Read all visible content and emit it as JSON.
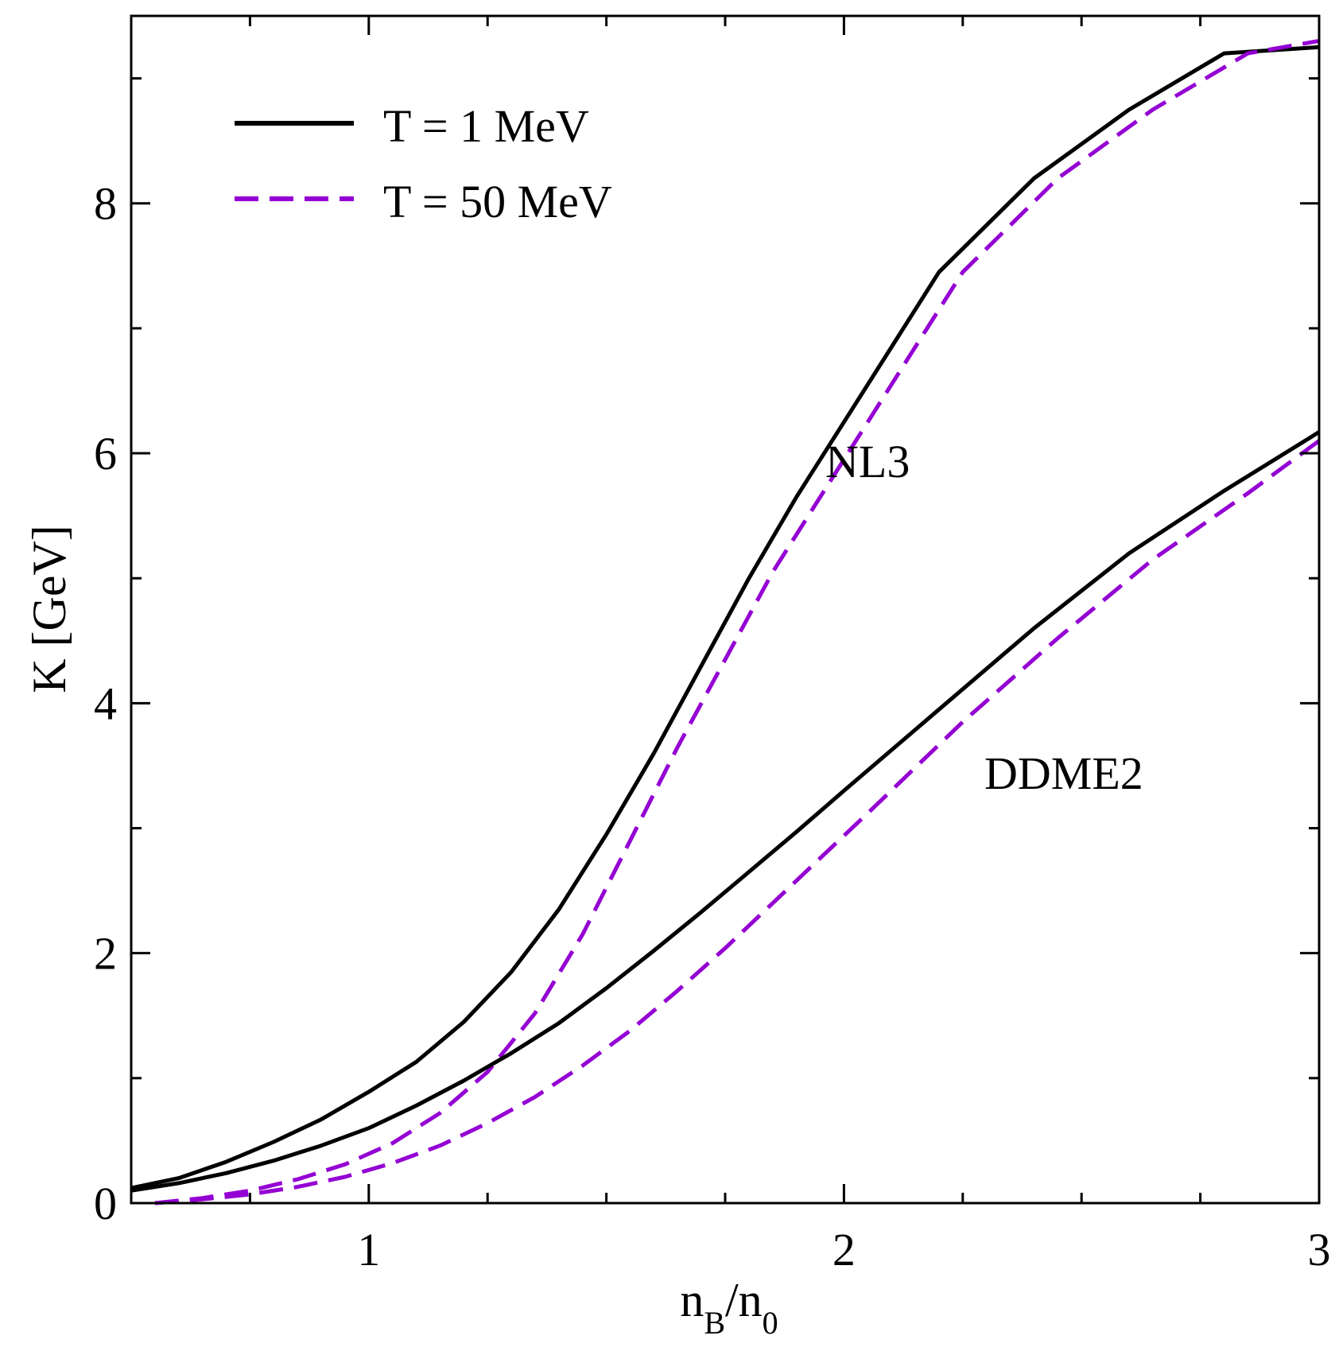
{
  "chart_data": {
    "type": "line",
    "title": "",
    "xlabel_main": "n",
    "xlabel_sub1": "B",
    "xlabel_slash": "/n",
    "xlabel_sub2": "0",
    "ylabel": "K [GeV]",
    "xlim": [
      0.5,
      3.0
    ],
    "ylim": [
      0,
      9.5
    ],
    "x_ticks": [
      1,
      2,
      3
    ],
    "x_minor_ticks": [
      0.75,
      1.25,
      1.5,
      1.75,
      2.25,
      2.5,
      2.75
    ],
    "y_ticks": [
      0,
      2,
      4,
      6,
      8
    ],
    "y_minor_ticks": [
      1,
      3,
      5,
      7,
      9
    ],
    "legend": [
      {
        "label": "T = 1 MeV",
        "color": "#000000",
        "style": "solid"
      },
      {
        "label": "T = 50 MeV",
        "color": "#9400D3",
        "style": "dashed"
      }
    ],
    "annotations": [
      {
        "text": "NL3",
        "x": 1.94,
        "y": 5.75
      },
      {
        "text": "DDME2",
        "x": 2.28,
        "y": 3.3
      }
    ],
    "series": [
      {
        "name": "NL3, T = 1 MeV",
        "color": "#000000",
        "style": "solid",
        "x": [
          0.5,
          0.6,
          0.7,
          0.8,
          0.9,
          1.0,
          1.1,
          1.2,
          1.3,
          1.4,
          1.5,
          1.6,
          1.7,
          1.8,
          1.9,
          2.0,
          2.1,
          2.2,
          2.4,
          2.6,
          2.8,
          3.0
        ],
        "y": [
          0.12,
          0.2,
          0.33,
          0.49,
          0.67,
          0.89,
          1.13,
          1.45,
          1.85,
          2.35,
          2.95,
          3.6,
          4.3,
          5.0,
          5.65,
          6.25,
          6.85,
          7.45,
          8.2,
          8.75,
          9.2,
          9.25
        ]
      },
      {
        "name": "NL3, T = 50 MeV",
        "color": "#9400D3",
        "style": "dashed",
        "x": [
          0.55,
          0.65,
          0.75,
          0.85,
          0.95,
          1.05,
          1.15,
          1.25,
          1.35,
          1.45,
          1.55,
          1.65,
          1.75,
          1.85,
          1.95,
          2.05,
          2.15,
          2.25,
          2.45,
          2.65,
          2.85,
          3.0
        ],
        "y": [
          0.0,
          0.04,
          0.1,
          0.19,
          0.31,
          0.48,
          0.72,
          1.05,
          1.52,
          2.15,
          2.9,
          3.65,
          4.35,
          5.05,
          5.65,
          6.25,
          6.85,
          7.45,
          8.2,
          8.75,
          9.2,
          9.3
        ]
      },
      {
        "name": "DDME2, T = 1 MeV",
        "color": "#000000",
        "style": "solid",
        "x": [
          0.5,
          0.6,
          0.7,
          0.8,
          0.9,
          1.0,
          1.1,
          1.2,
          1.3,
          1.4,
          1.5,
          1.6,
          1.7,
          1.8,
          1.9,
          2.0,
          2.2,
          2.4,
          2.6,
          2.8,
          3.0
        ],
        "y": [
          0.1,
          0.16,
          0.24,
          0.34,
          0.46,
          0.6,
          0.78,
          0.98,
          1.2,
          1.44,
          1.72,
          2.02,
          2.33,
          2.65,
          2.97,
          3.3,
          3.95,
          4.6,
          5.2,
          5.7,
          6.17
        ]
      },
      {
        "name": "DDME2, T = 50 MeV",
        "color": "#9400D3",
        "style": "dashed",
        "x": [
          0.55,
          0.65,
          0.75,
          0.85,
          0.95,
          1.05,
          1.15,
          1.25,
          1.35,
          1.45,
          1.55,
          1.65,
          1.75,
          1.85,
          1.95,
          2.05,
          2.25,
          2.45,
          2.65,
          2.85,
          3.0
        ],
        "y": [
          0.0,
          0.03,
          0.07,
          0.13,
          0.21,
          0.32,
          0.46,
          0.64,
          0.85,
          1.1,
          1.38,
          1.7,
          2.04,
          2.4,
          2.76,
          3.12,
          3.85,
          4.52,
          5.15,
          5.68,
          6.1
        ]
      }
    ]
  }
}
